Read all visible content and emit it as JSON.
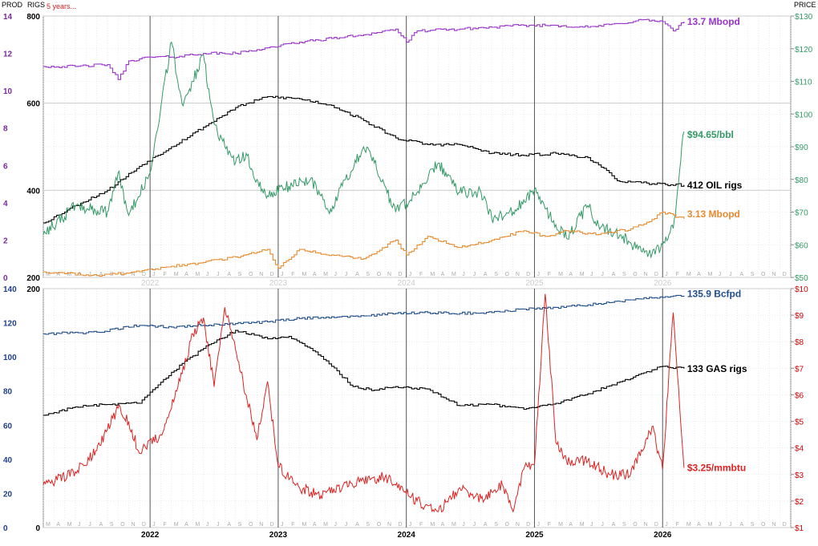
{
  "header": {
    "prod_label": "PROD",
    "rigs_label": "RIGS",
    "timespan": "5 years...",
    "price_label": "PRICE"
  },
  "colors": {
    "oil_prod": "#9933cc",
    "oil_rigs": "#000000",
    "oil_price": "#339966",
    "oil_minor_prod": "#e88a2e",
    "gas_prod": "#1f4e8c",
    "gas_rigs": "#000000",
    "gas_price": "#dd2222",
    "prod_axis": "#7a2a9c",
    "oil_price_axis": "#339966",
    "gas_price_axis": "#cc0000",
    "gas_prod_axis": "#1f3f8c"
  },
  "chart_data": [
    {
      "type": "line",
      "panel": "oil",
      "x_axis": {
        "years": [
          "2022",
          "2023",
          "2024",
          "2025",
          "2026"
        ],
        "month_labels": [
          "J",
          "F",
          "M",
          "A",
          "M",
          "J",
          "J",
          "A",
          "S",
          "O",
          "N",
          "D"
        ],
        "range": [
          "2021-03",
          "2026-12"
        ]
      },
      "left_axis_prod": {
        "ticks": [
          "0",
          "2",
          "4",
          "6",
          "8",
          "10",
          "12",
          "14"
        ],
        "range": [
          0,
          14
        ]
      },
      "left_axis_rigs": {
        "ticks": [
          "200",
          "400",
          "600",
          "800"
        ],
        "range": [
          200,
          800
        ]
      },
      "right_axis_price": {
        "ticks": [
          "$50",
          "$60",
          "$70",
          "$80",
          "$90",
          "$100",
          "$110",
          "$120",
          "$130"
        ],
        "range": [
          50,
          130
        ]
      },
      "grid": true,
      "series": [
        {
          "name": "13.7 Mbopd",
          "axis": "prod",
          "color_key": "oil_prod",
          "points": [
            [
              "2021-03",
              11.3
            ],
            [
              "2021-06",
              11.3
            ],
            [
              "2021-09",
              11.4
            ],
            [
              "2021-10",
              10.6
            ],
            [
              "2021-11",
              11.6
            ],
            [
              "2022-01",
              11.8
            ],
            [
              "2022-03",
              11.8
            ],
            [
              "2022-06",
              12.0
            ],
            [
              "2022-09",
              12.0
            ],
            [
              "2022-12",
              12.3
            ],
            [
              "2023-03",
              12.6
            ],
            [
              "2023-06",
              12.8
            ],
            [
              "2023-09",
              13.0
            ],
            [
              "2023-12",
              13.3
            ],
            [
              "2024-01",
              12.6
            ],
            [
              "2024-02",
              13.2
            ],
            [
              "2024-06",
              13.3
            ],
            [
              "2024-09",
              13.4
            ],
            [
              "2024-12",
              13.5
            ],
            [
              "2025-03",
              13.5
            ],
            [
              "2025-06",
              13.4
            ],
            [
              "2025-09",
              13.6
            ],
            [
              "2025-11",
              13.8
            ],
            [
              "2026-01",
              13.7
            ],
            [
              "2026-02",
              13.2
            ],
            [
              "2026-03",
              13.7
            ]
          ]
        },
        {
          "name": "412 OIL rigs",
          "axis": "rigs",
          "color_key": "oil_rigs",
          "points": [
            [
              "2021-03",
              325
            ],
            [
              "2021-06",
              365
            ],
            [
              "2021-09",
              400
            ],
            [
              "2021-12",
              455
            ],
            [
              "2022-03",
              500
            ],
            [
              "2022-06",
              545
            ],
            [
              "2022-09",
              590
            ],
            [
              "2022-12",
              615
            ],
            [
              "2023-03",
              610
            ],
            [
              "2023-06",
              595
            ],
            [
              "2023-09",
              560
            ],
            [
              "2023-12",
              520
            ],
            [
              "2024-03",
              505
            ],
            [
              "2024-06",
              505
            ],
            [
              "2024-09",
              485
            ],
            [
              "2024-12",
              480
            ],
            [
              "2025-03",
              485
            ],
            [
              "2025-06",
              475
            ],
            [
              "2025-09",
              420
            ],
            [
              "2025-12",
              415
            ],
            [
              "2026-03",
              412
            ]
          ]
        },
        {
          "name": "$94.65/bbl",
          "axis": "price",
          "color_key": "oil_price",
          "points": [
            [
              "2021-03",
              63
            ],
            [
              "2021-06",
              72
            ],
            [
              "2021-09",
              70
            ],
            [
              "2021-10",
              82
            ],
            [
              "2021-11",
              69
            ],
            [
              "2022-01",
              82
            ],
            [
              "2022-03",
              122
            ],
            [
              "2022-04",
              103
            ],
            [
              "2022-05",
              110
            ],
            [
              "2022-06",
              118
            ],
            [
              "2022-07",
              97
            ],
            [
              "2022-08",
              90
            ],
            [
              "2022-09",
              85
            ],
            [
              "2022-10",
              88
            ],
            [
              "2022-11",
              80
            ],
            [
              "2022-12",
              75
            ],
            [
              "2023-02",
              78
            ],
            [
              "2023-04",
              80
            ],
            [
              "2023-06",
              70
            ],
            [
              "2023-07",
              78
            ],
            [
              "2023-09",
              90
            ],
            [
              "2023-10",
              85
            ],
            [
              "2023-12",
              70
            ],
            [
              "2024-02",
              76
            ],
            [
              "2024-04",
              85
            ],
            [
              "2024-06",
              76
            ],
            [
              "2024-08",
              76
            ],
            [
              "2024-09",
              68
            ],
            [
              "2024-11",
              70
            ],
            [
              "2025-01",
              77
            ],
            [
              "2025-02",
              71
            ],
            [
              "2025-04",
              62
            ],
            [
              "2025-06",
              72
            ],
            [
              "2025-07",
              66
            ],
            [
              "2025-09",
              63
            ],
            [
              "2025-11",
              58
            ],
            [
              "2025-12",
              57
            ],
            [
              "2026-01",
              60
            ],
            [
              "2026-02",
              65
            ],
            [
              "2026-03",
              94.65
            ]
          ]
        },
        {
          "name": "3.13 Mbopd",
          "axis": "prod",
          "color_key": "oil_minor_prod",
          "points": [
            [
              "2021-03",
              0.3
            ],
            [
              "2021-08",
              0.1
            ],
            [
              "2021-12",
              0.3
            ],
            [
              "2022-03",
              0.6
            ],
            [
              "2022-06",
              0.8
            ],
            [
              "2022-09",
              1.1
            ],
            [
              "2022-12",
              1.5
            ],
            [
              "2023-01",
              0.5
            ],
            [
              "2023-03",
              1.5
            ],
            [
              "2023-06",
              1.2
            ],
            [
              "2023-09",
              1.0
            ],
            [
              "2023-12",
              2.0
            ],
            [
              "2024-01",
              1.2
            ],
            [
              "2024-03",
              2.2
            ],
            [
              "2024-06",
              1.6
            ],
            [
              "2024-09",
              2.0
            ],
            [
              "2024-12",
              2.5
            ],
            [
              "2025-02",
              2.2
            ],
            [
              "2025-04",
              2.5
            ],
            [
              "2025-07",
              2.3
            ],
            [
              "2025-10",
              2.6
            ],
            [
              "2025-12",
              3.1
            ],
            [
              "2026-01",
              3.5
            ],
            [
              "2026-03",
              3.13
            ]
          ]
        }
      ]
    },
    {
      "type": "line",
      "panel": "gas",
      "x_axis": {
        "years": [
          "2022",
          "2023",
          "2024",
          "2025",
          "2026"
        ],
        "month_labels": [
          "J",
          "F",
          "M",
          "A",
          "M",
          "J",
          "J",
          "A",
          "S",
          "O",
          "N",
          "D"
        ],
        "range": [
          "2021-03",
          "2026-12"
        ]
      },
      "left_axis_prod": {
        "ticks": [
          "0",
          "20",
          "40",
          "60",
          "80",
          "100",
          "120",
          "140"
        ],
        "range": [
          0,
          140
        ]
      },
      "left_axis_rigs": {
        "ticks": [
          "0",
          "200"
        ],
        "range": [
          0,
          200
        ]
      },
      "right_axis_price": {
        "ticks": [
          "$1",
          "$2",
          "$3",
          "$4",
          "$5",
          "$6",
          "$7",
          "$8",
          "$9",
          "$10"
        ],
        "range": [
          1,
          10
        ]
      },
      "grid": true,
      "series": [
        {
          "name": "135.9 Bcfpd",
          "axis": "prod",
          "color_key": "gas_prod",
          "points": [
            [
              "2021-03",
              113.5
            ],
            [
              "2021-08",
              114.5
            ],
            [
              "2021-12",
              118.5
            ],
            [
              "2022-03",
              117.5
            ],
            [
              "2022-06",
              118.5
            ],
            [
              "2022-09",
              119.5
            ],
            [
              "2022-12",
              120.5
            ],
            [
              "2023-03",
              122.5
            ],
            [
              "2023-06",
              123.5
            ],
            [
              "2023-09",
              124.0
            ],
            [
              "2023-12",
              125.5
            ],
            [
              "2024-03",
              126.0
            ],
            [
              "2024-06",
              125.5
            ],
            [
              "2024-09",
              126.0
            ],
            [
              "2024-12",
              128.0
            ],
            [
              "2025-03",
              129.0
            ],
            [
              "2025-06",
              130.5
            ],
            [
              "2025-09",
              132.5
            ],
            [
              "2025-12",
              134.5
            ],
            [
              "2026-03",
              135.9
            ]
          ]
        },
        {
          "name": "133 GAS rigs",
          "axis": "rigs",
          "color_key": "gas_rigs",
          "points": [
            [
              "2021-03",
              94
            ],
            [
              "2021-06",
              101
            ],
            [
              "2021-09",
              103
            ],
            [
              "2021-12",
              104
            ],
            [
              "2022-03",
              130
            ],
            [
              "2022-06",
              150
            ],
            [
              "2022-09",
              165
            ],
            [
              "2022-12",
              158
            ],
            [
              "2023-02",
              160
            ],
            [
              "2023-04",
              150
            ],
            [
              "2023-06",
              135
            ],
            [
              "2023-08",
              118
            ],
            [
              "2023-10",
              115
            ],
            [
              "2023-12",
              118
            ],
            [
              "2024-03",
              116
            ],
            [
              "2024-06",
              102
            ],
            [
              "2024-09",
              103
            ],
            [
              "2024-12",
              99
            ],
            [
              "2025-03",
              104
            ],
            [
              "2025-06",
              112
            ],
            [
              "2025-09",
              122
            ],
            [
              "2025-12",
              132
            ],
            [
              "2026-01",
              135
            ],
            [
              "2026-03",
              133
            ]
          ]
        },
        {
          "name": "$3.25/mmbtu",
          "axis": "price",
          "color_key": "gas_price",
          "points": [
            [
              "2021-03",
              2.6
            ],
            [
              "2021-06",
              3.1
            ],
            [
              "2021-08",
              3.9
            ],
            [
              "2021-10",
              5.5
            ],
            [
              "2021-11",
              5.0
            ],
            [
              "2021-12",
              3.8
            ],
            [
              "2022-02",
              4.5
            ],
            [
              "2022-04",
              6.8
            ],
            [
              "2022-05",
              8.3
            ],
            [
              "2022-06",
              8.9
            ],
            [
              "2022-07",
              6.3
            ],
            [
              "2022-08",
              9.3
            ],
            [
              "2022-09",
              7.7
            ],
            [
              "2022-10",
              6.0
            ],
            [
              "2022-11",
              4.3
            ],
            [
              "2022-12",
              6.5
            ],
            [
              "2023-01",
              3.3
            ],
            [
              "2023-03",
              2.5
            ],
            [
              "2023-05",
              2.2
            ],
            [
              "2023-07",
              2.5
            ],
            [
              "2023-09",
              2.8
            ],
            [
              "2023-11",
              2.9
            ],
            [
              "2023-12",
              2.6
            ],
            [
              "2024-02",
              2.0
            ],
            [
              "2024-04",
              1.6
            ],
            [
              "2024-06",
              2.5
            ],
            [
              "2024-08",
              2.1
            ],
            [
              "2024-10",
              2.6
            ],
            [
              "2024-11",
              1.6
            ],
            [
              "2024-12",
              3.2
            ],
            [
              "2025-01",
              3.4
            ],
            [
              "2025-02",
              9.8
            ],
            [
              "2025-03",
              4.2
            ],
            [
              "2025-04",
              3.5
            ],
            [
              "2025-06",
              3.5
            ],
            [
              "2025-08",
              3.0
            ],
            [
              "2025-10",
              3.0
            ],
            [
              "2025-12",
              4.8
            ],
            [
              "2026-01",
              3.2
            ],
            [
              "2026-02",
              9.1
            ],
            [
              "2026-03",
              3.25
            ]
          ]
        }
      ]
    }
  ]
}
